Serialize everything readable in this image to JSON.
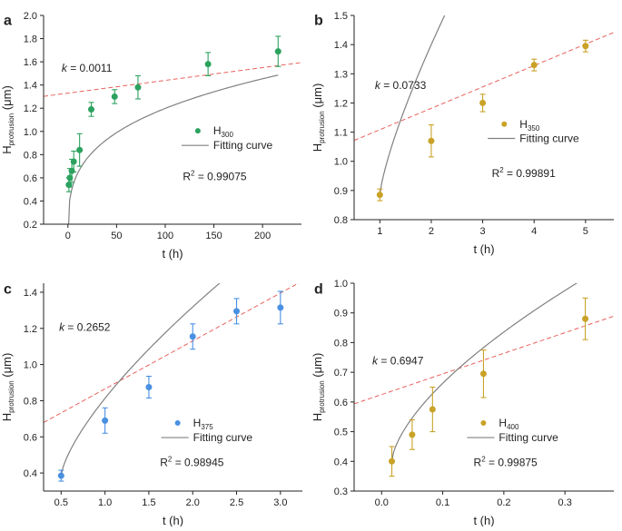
{
  "chart_data": [
    {
      "type": "scatter",
      "panel_label": "a",
      "xlabel": "t (h)",
      "ylabel_main": "H",
      "ylabel_sub": "protrusion",
      "ylabel_unit": "(μm)",
      "xlim": [
        -25,
        240
      ],
      "ylim": [
        0.2,
        2.0
      ],
      "x_ticks": [
        0,
        50,
        100,
        150,
        200
      ],
      "x_tick_labels": [
        "0",
        "50",
        "100",
        "150",
        "200"
      ],
      "y_ticks": [
        0.2,
        0.4,
        0.6,
        0.8,
        1.0,
        1.2,
        1.4,
        1.6,
        1.8,
        2.0
      ],
      "y_tick_labels": [
        "0.2",
        "0.4",
        "0.6",
        "0.8",
        "1.0",
        "1.2",
        "1.4",
        "1.6",
        "1.8",
        "2.0"
      ],
      "series": {
        "name_main": "H",
        "name_sub": "300",
        "color": "#2ca25f",
        "x": [
          1,
          2,
          4,
          6,
          12,
          24,
          48,
          72,
          144,
          216
        ],
        "y": [
          0.54,
          0.6,
          0.66,
          0.74,
          0.84,
          1.19,
          1.3,
          1.38,
          1.58,
          1.69
        ],
        "yerr": [
          0.06,
          0.08,
          0.1,
          0.09,
          0.14,
          0.06,
          0.06,
          0.1,
          0.1,
          0.13
        ]
      },
      "fit_label": "Fitting curve",
      "fit": {
        "a": 0.05,
        "b": 0.302,
        "p": 0.29,
        "tstart": 0
      },
      "tangent": {
        "slope": 0.0011,
        "intercept": 1.33
      },
      "k_label": "k",
      "k_text": " = 0.0011",
      "r2_main": "R",
      "r2_sup": "2",
      "r2_text": " = 0.99075"
    },
    {
      "type": "scatter",
      "panel_label": "b",
      "xlabel": "t (h)",
      "ylabel_main": "H",
      "ylabel_sub": "protrusion",
      "ylabel_unit": "(μm)",
      "xlim": [
        0.5,
        5.55
      ],
      "ylim": [
        0.8,
        1.5
      ],
      "x_ticks": [
        1,
        2,
        3,
        4,
        5
      ],
      "x_tick_labels": [
        "1",
        "2",
        "3",
        "4",
        "5"
      ],
      "y_ticks": [
        0.8,
        0.9,
        1.0,
        1.1,
        1.2,
        1.3,
        1.4,
        1.5
      ],
      "y_tick_labels": [
        "0.8",
        "0.9",
        "1.0",
        "1.1",
        "1.2",
        "1.3",
        "1.4",
        "1.5"
      ],
      "series": {
        "name_main": "H",
        "name_sub": "350",
        "color": "#c9a227",
        "x": [
          1,
          2,
          3,
          4,
          5
        ],
        "y": [
          0.885,
          1.07,
          1.2,
          1.33,
          1.395
        ],
        "yerr": [
          0.02,
          0.055,
          0.03,
          0.02,
          0.02
        ]
      },
      "fit_label": "Fitting curve",
      "fit": {
        "a": 0.885,
        "b": 0.515,
        "p": 0.77,
        "tstart": 1
      },
      "tangent": {
        "slope": 0.0733,
        "intercept": 1.035
      },
      "k_label": "k",
      "k_text": " = 0.0733",
      "r2_main": "R",
      "r2_sup": "2",
      "r2_text": " = 0.99891"
    },
    {
      "type": "scatter",
      "panel_label": "c",
      "xlabel": "t (h)",
      "ylabel_main": "H",
      "ylabel_sub": "protrusion",
      "ylabel_unit": "(μm)",
      "xlim": [
        0.3,
        3.25
      ],
      "ylim": [
        0.3,
        1.45
      ],
      "x_ticks": [
        0.5,
        1.0,
        1.5,
        2.0,
        2.5,
        3.0
      ],
      "x_tick_labels": [
        "0.5",
        "1.0",
        "1.5",
        "2.0",
        "2.5",
        "3.0"
      ],
      "y_ticks": [
        0.4,
        0.6,
        0.8,
        1.0,
        1.2,
        1.4
      ],
      "y_tick_labels": [
        "0.4",
        "0.6",
        "0.8",
        "1.0",
        "1.2",
        "1.4"
      ],
      "series": {
        "name_main": "H",
        "name_sub": "375",
        "color": "#4a90e2",
        "x": [
          0.5,
          1.0,
          1.5,
          2.0,
          2.5,
          3.0
        ],
        "y": [
          0.385,
          0.69,
          0.875,
          1.155,
          1.295,
          1.315
        ],
        "yerr": [
          0.03,
          0.07,
          0.06,
          0.07,
          0.07,
          0.09
        ]
      },
      "fit_label": "Fitting curve",
      "fit": {
        "a": 0.385,
        "b": 0.7,
        "p": 0.71,
        "tstart": 0.5
      },
      "tangent": {
        "slope": 0.2652,
        "intercept": 0.6
      },
      "k_label": "k",
      "k_text": " = 0.2652",
      "r2_main": "R",
      "r2_sup": "2",
      "r2_text": " = 0.98945"
    },
    {
      "type": "scatter",
      "panel_label": "d",
      "xlabel": "t (h)",
      "ylabel_main": "H",
      "ylabel_sub": "protrusion",
      "ylabel_unit": "(μm)",
      "xlim": [
        -0.045,
        0.38
      ],
      "ylim": [
        0.3,
        1.0
      ],
      "x_ticks": [
        0.0,
        0.1,
        0.2,
        0.3
      ],
      "x_tick_labels": [
        "0.0",
        "0.1",
        "0.2",
        "0.3"
      ],
      "y_ticks": [
        0.3,
        0.4,
        0.5,
        0.6,
        0.7,
        0.8,
        0.9,
        1.0
      ],
      "y_tick_labels": [
        "0.3",
        "0.4",
        "0.5",
        "0.6",
        "0.7",
        "0.8",
        "0.9",
        "1.0"
      ],
      "series": {
        "name_main": "H",
        "name_sub": "400",
        "color": "#c9a227",
        "x": [
          0.0167,
          0.05,
          0.0833,
          0.1667,
          0.3333
        ],
        "y": [
          0.4,
          0.49,
          0.575,
          0.695,
          0.88
        ],
        "yerr": [
          0.05,
          0.05,
          0.075,
          0.08,
          0.07
        ]
      },
      "fit_label": "Fitting curve",
      "fit": {
        "a": 0.4,
        "b": 1.29,
        "p": 0.64,
        "tstart": 0.0167
      },
      "tangent": {
        "slope": 0.6947,
        "intercept": 0.625
      },
      "k_label": "k",
      "k_text": " = 0.6947",
      "r2_main": "R",
      "r2_sup": "2",
      "r2_text": " = 0.99875"
    }
  ]
}
